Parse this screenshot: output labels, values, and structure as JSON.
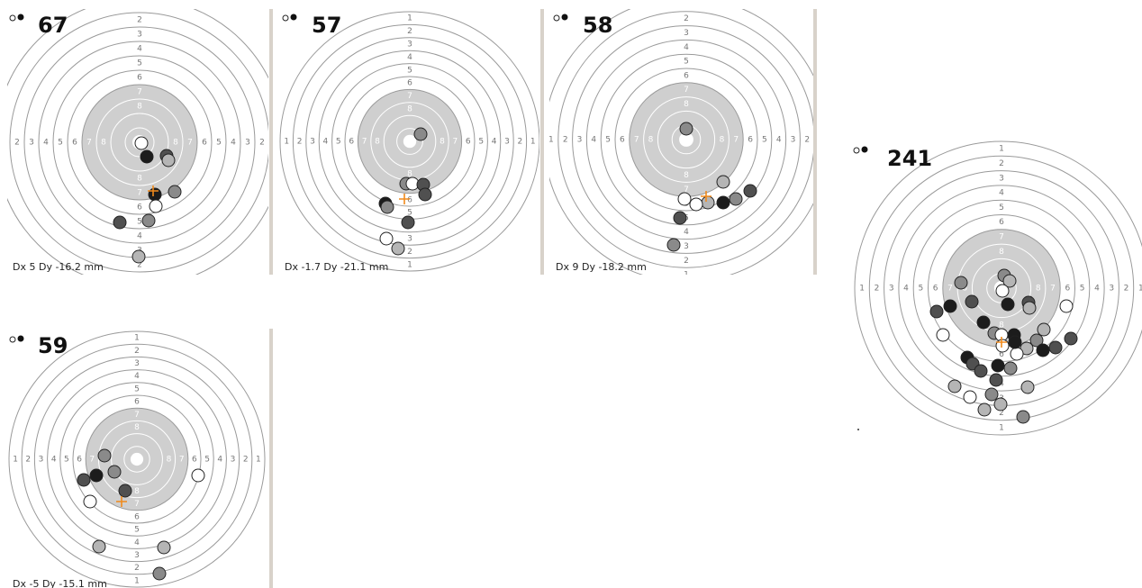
{
  "targets": [
    {
      "score": 67,
      "offset": "Dx 5 Dy -16.2 mm"
    },
    {
      "score": 57,
      "offset": "Dx -1.7 Dy -21.1 mm"
    },
    {
      "score": 58,
      "offset": "Dx 9 Dy -18.2 mm"
    },
    {
      "score": 59,
      "offset": "Dx -5 Dy -15.1 mm"
    },
    {
      "score": 241
    }
  ],
  "ring_labels": [
    1,
    2,
    3,
    4,
    5,
    6,
    7,
    8
  ]
}
